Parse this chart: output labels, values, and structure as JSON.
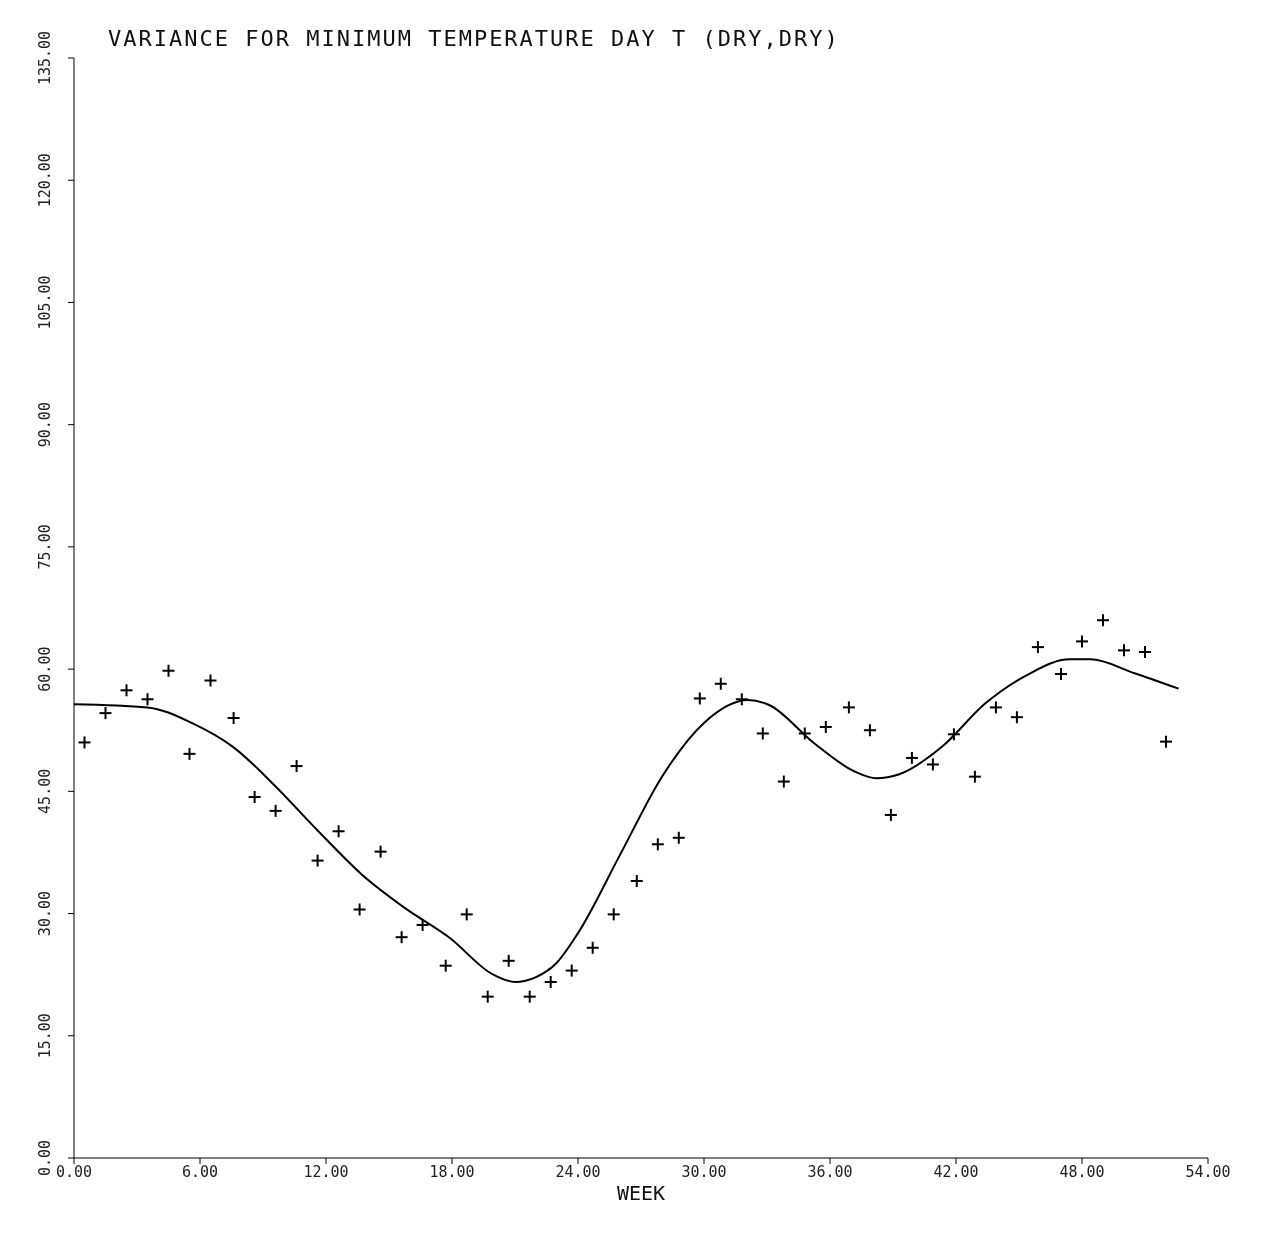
{
  "chart_data": {
    "type": "scatter",
    "title": "VARIANCE FOR MINIMUM TEMPERATURE DAY T (DRY,DRY)",
    "xlabel": "WEEK",
    "xlim": [
      0,
      54
    ],
    "xticks": [
      {
        "value": 0,
        "label": "0.00"
      },
      {
        "value": 6,
        "label": "6.00"
      },
      {
        "value": 12,
        "label": "12.00"
      },
      {
        "value": 18,
        "label": "18.00"
      },
      {
        "value": 24,
        "label": "24.00"
      },
      {
        "value": 30,
        "label": "30.00"
      },
      {
        "value": 36,
        "label": "36.00"
      },
      {
        "value": 42,
        "label": "42.00"
      },
      {
        "value": 48,
        "label": "48.00"
      },
      {
        "value": 54,
        "label": "54.00"
      }
    ],
    "ylim": [
      0,
      135
    ],
    "yticks": [
      {
        "value": 0,
        "label": "0.00"
      },
      {
        "value": 15,
        "label": "15.00"
      },
      {
        "value": 30,
        "label": "30.00"
      },
      {
        "value": 45,
        "label": "45.00"
      },
      {
        "value": 60,
        "label": "60.00"
      },
      {
        "value": 75,
        "label": "75.00"
      },
      {
        "value": 90,
        "label": "90.00"
      },
      {
        "value": 105,
        "label": "105.00"
      },
      {
        "value": 120,
        "label": "120.00"
      },
      {
        "value": 135,
        "label": "135.00"
      }
    ],
    "grid": false,
    "legend": false,
    "series": [
      {
        "color": "#000000",
        "marker": "cross",
        "x": [
          0.5,
          1.5,
          2.5,
          3.5,
          4.5,
          5.5,
          6.5,
          7.6,
          8.6,
          9.6,
          10.6,
          11.6,
          12.6,
          13.6,
          14.6,
          15.6,
          16.6,
          17.7,
          18.7,
          19.7,
          20.7,
          21.7,
          22.7,
          23.7,
          24.7,
          25.7,
          26.8,
          27.8,
          28.8,
          29.8,
          30.8,
          31.8,
          32.8,
          33.8,
          34.8,
          35.8,
          36.9,
          37.9,
          38.9,
          39.9,
          40.9,
          41.9,
          42.9,
          43.9,
          44.9,
          45.9,
          47.0,
          48.0,
          49.0,
          50.0,
          51.0,
          52.0
        ],
        "values": [
          51.0,
          54.6,
          57.4,
          56.3,
          59.8,
          49.6,
          58.6,
          54.0,
          44.3,
          42.6,
          48.1,
          36.5,
          40.1,
          30.5,
          37.6,
          27.1,
          28.6,
          23.6,
          29.9,
          19.8,
          24.2,
          19.8,
          21.6,
          23.0,
          25.8,
          29.9,
          34.0,
          38.5,
          39.3,
          56.4,
          58.2,
          56.3,
          52.1,
          46.2,
          52.1,
          52.9,
          55.3,
          52.5,
          42.1,
          49.1,
          48.3,
          52.0,
          46.8,
          55.3,
          54.1,
          62.7,
          59.4,
          63.4,
          66.0,
          62.3,
          62.1,
          51.1
        ]
      },
      {
        "type": "line",
        "color": "#000000",
        "marker": "none",
        "line_style": "solid",
        "x": [
          0,
          3.5,
          5.6,
          7.6,
          9.6,
          11.6,
          13.7,
          15.8,
          17.9,
          19.9,
          21.0,
          22.0,
          23.0,
          24.0,
          26.0,
          28.0,
          30.0,
          32.1,
          33.1,
          35.2,
          37.2,
          38.2,
          39.3,
          41.3,
          43.4,
          45.4,
          47.4,
          48.4,
          50.5,
          52.6
        ],
        "values": [
          55.7,
          55.3,
          53.4,
          50.4,
          45.6,
          40.2,
          34.8,
          30.6,
          27.0,
          22.6,
          21.6,
          22.2,
          24.0,
          27.6,
          37.2,
          46.8,
          53.4,
          56.2,
          55.6,
          51.0,
          47.4,
          46.6,
          47.1,
          50.4,
          55.8,
          59.3,
          61.2,
          61.2,
          59.5,
          57.6
        ]
      }
    ]
  }
}
